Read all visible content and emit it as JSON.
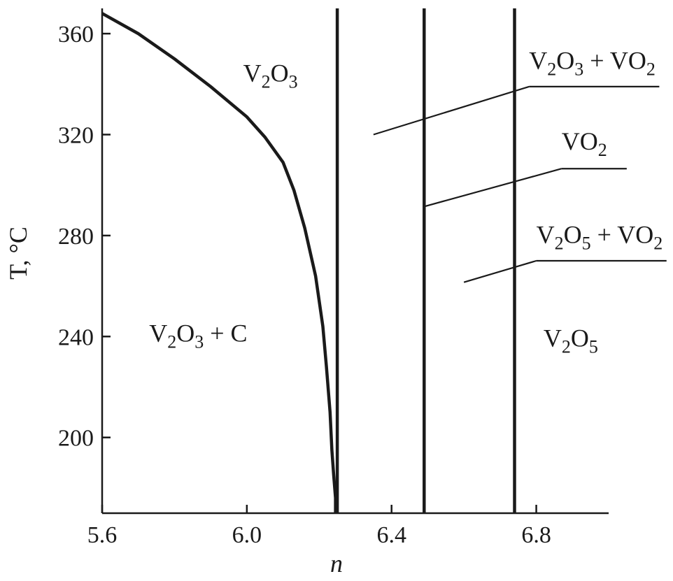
{
  "chart_data": {
    "type": "line",
    "xlabel": "n",
    "ylabel": "T, °C",
    "xlim": [
      5.6,
      7.0
    ],
    "ylim": [
      170,
      370
    ],
    "x_ticks": [
      5.6,
      6.0,
      6.4,
      6.8
    ],
    "y_ticks": [
      200,
      240,
      280,
      320,
      360
    ],
    "x_tick_labels": [
      "5.6",
      "6.0",
      "6.4",
      "6.8"
    ],
    "y_tick_labels": [
      "200",
      "240",
      "280",
      "320",
      "360"
    ],
    "grid": false,
    "legend": "none",
    "line_color": "#1a1a1a",
    "series": [
      {
        "id": "v2o3-carbon-boundary",
        "x": [
          5.6,
          5.7,
          5.8,
          5.9,
          6.0,
          6.05,
          6.1,
          6.13,
          6.16,
          6.19,
          6.21,
          6.22,
          6.23,
          6.235,
          6.24,
          6.245,
          6.245
        ],
        "y": [
          368,
          360,
          350,
          339,
          327,
          319,
          309,
          298,
          283,
          264,
          244,
          228,
          210,
          195,
          185,
          176,
          170
        ]
      },
      {
        "id": "boundary-n-6.25",
        "x": [
          6.25,
          6.25
        ],
        "y": [
          170,
          370
        ]
      },
      {
        "id": "boundary-n-6.49",
        "x": [
          6.49,
          6.49
        ],
        "y": [
          170,
          370
        ]
      },
      {
        "id": "boundary-n-6.74",
        "x": [
          6.74,
          6.74
        ],
        "y": [
          170,
          370
        ]
      }
    ],
    "annotations": [
      {
        "id": "v2o3",
        "parts": [
          [
            "V",
            0
          ],
          [
            "2",
            1
          ],
          [
            "O",
            0
          ],
          [
            "3",
            1
          ]
        ],
        "x": 5.99,
        "y": 341
      },
      {
        "id": "v2o3-c",
        "parts": [
          [
            "V",
            0
          ],
          [
            "2",
            1
          ],
          [
            "O",
            0
          ],
          [
            "3",
            1
          ],
          [
            " + C",
            0
          ]
        ],
        "x": 5.73,
        "y": 238
      },
      {
        "id": "v2o5",
        "parts": [
          [
            "V",
            0
          ],
          [
            "2",
            1
          ],
          [
            "O",
            0
          ],
          [
            "5",
            1
          ]
        ],
        "x": 6.82,
        "y": 236
      },
      {
        "id": "v2o3-vo2",
        "parts": [
          [
            "V",
            0
          ],
          [
            "2",
            1
          ],
          [
            "O",
            0
          ],
          [
            "3",
            1
          ],
          [
            " + VO",
            0
          ],
          [
            "2",
            1
          ]
        ],
        "x": 6.78,
        "y": 346,
        "leader": [
          [
            6.78,
            339
          ],
          [
            7.14,
            339
          ],
          [
            6.78,
            339
          ],
          [
            6.35,
            320
          ]
        ]
      },
      {
        "id": "vo2",
        "parts": [
          [
            "VO",
            0
          ],
          [
            "2",
            1
          ]
        ],
        "x": 6.87,
        "y": 314,
        "leader": [
          [
            6.87,
            306.5
          ],
          [
            7.05,
            306.5
          ],
          [
            6.87,
            306.5
          ],
          [
            6.49,
            291.5
          ]
        ]
      },
      {
        "id": "v2o5-vo2",
        "parts": [
          [
            "V",
            0
          ],
          [
            "2",
            1
          ],
          [
            "O",
            0
          ],
          [
            "5",
            1
          ],
          [
            " + VO",
            0
          ],
          [
            "2",
            1
          ]
        ],
        "x": 6.8,
        "y": 277,
        "leader": [
          [
            6.8,
            270
          ],
          [
            7.16,
            270
          ],
          [
            6.8,
            270
          ],
          [
            6.6,
            261.5
          ]
        ]
      }
    ]
  }
}
